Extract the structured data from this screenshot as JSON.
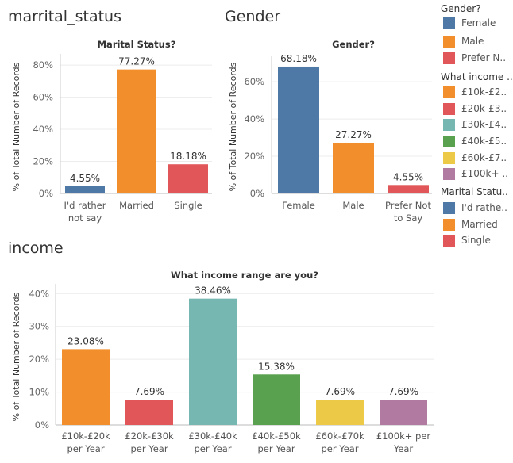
{
  "sheets": [
    {
      "title": "marrital_status"
    },
    {
      "title": "Gender"
    },
    {
      "title": "income"
    }
  ],
  "colors": {
    "blue": "#4e79a7",
    "orange": "#f28e2b",
    "red": "#e15759",
    "teal": "#76b7b2",
    "green": "#59a14f",
    "yellow": "#edc948",
    "purple": "#b07aa1"
  },
  "chart_data": [
    {
      "type": "bar",
      "title": "Marital Status?",
      "ylabel": "% of Total Number of Records",
      "ylim": [
        0,
        85
      ],
      "yticks": [
        "0%",
        "20%",
        "40%",
        "60%",
        "80%"
      ],
      "ytick_values": [
        0,
        20,
        40,
        60,
        80
      ],
      "categories": [
        [
          "I'd rather",
          "not say"
        ],
        [
          "Married"
        ],
        [
          "Single"
        ]
      ],
      "values": [
        4.55,
        77.27,
        18.18
      ],
      "data_labels": [
        "4.55%",
        "77.27%",
        "18.18%"
      ],
      "colors": [
        "#4e79a7",
        "#f28e2b",
        "#e15759"
      ]
    },
    {
      "type": "bar",
      "title": "Gender?",
      "ylabel": "% of Total Number of Records",
      "ylim": [
        0,
        72
      ],
      "yticks": [
        "0%",
        "20%",
        "40%",
        "60%"
      ],
      "ytick_values": [
        0,
        20,
        40,
        60
      ],
      "categories": [
        [
          "Female"
        ],
        [
          "Male"
        ],
        [
          "Prefer Not",
          "to Say"
        ]
      ],
      "values": [
        68.18,
        27.27,
        4.55
      ],
      "data_labels": [
        "68.18%",
        "27.27%",
        "4.55%"
      ],
      "colors": [
        "#4e79a7",
        "#f28e2b",
        "#e15759"
      ]
    },
    {
      "type": "bar",
      "title": "What income range are you?",
      "ylabel": "% of Total Number of Records",
      "ylim": [
        0,
        42
      ],
      "yticks": [
        "0%",
        "10%",
        "20%",
        "30%",
        "40%"
      ],
      "ytick_values": [
        0,
        10,
        20,
        30,
        40
      ],
      "categories": [
        [
          "£10k-£20k",
          "per Year"
        ],
        [
          "£20k-£30k",
          "per Year"
        ],
        [
          "£30k-£40k",
          "per Year"
        ],
        [
          "£40k-£50k",
          "per Year"
        ],
        [
          "£60k-£70k",
          "per Year"
        ],
        [
          "£100k+ per",
          "Year"
        ]
      ],
      "values": [
        23.08,
        7.69,
        38.46,
        15.38,
        7.69,
        7.69
      ],
      "data_labels": [
        "23.08%",
        "7.69%",
        "38.46%",
        "15.38%",
        "7.69%",
        "7.69%"
      ],
      "colors": [
        "#f28e2b",
        "#e15759",
        "#76b7b2",
        "#59a14f",
        "#edc948",
        "#b07aa1"
      ]
    }
  ],
  "legends": [
    {
      "title": "Gender?",
      "items": [
        {
          "label": "Female",
          "color": "#4e79a7"
        },
        {
          "label": "Male",
          "color": "#f28e2b"
        },
        {
          "label": "Prefer N..",
          "color": "#e15759"
        }
      ]
    },
    {
      "title": "What income ..",
      "items": [
        {
          "label": "£10k-£2..",
          "color": "#f28e2b"
        },
        {
          "label": "£20k-£3..",
          "color": "#e15759"
        },
        {
          "label": "£30k-£4..",
          "color": "#76b7b2"
        },
        {
          "label": "£40k-£5..",
          "color": "#59a14f"
        },
        {
          "label": "£60k-£7..",
          "color": "#edc948"
        },
        {
          "label": "£100k+ ..",
          "color": "#b07aa1"
        }
      ]
    },
    {
      "title": "Marital Statu..",
      "items": [
        {
          "label": "I'd rathe..",
          "color": "#4e79a7"
        },
        {
          "label": "Married",
          "color": "#f28e2b"
        },
        {
          "label": "Single",
          "color": "#e15759"
        }
      ]
    }
  ]
}
